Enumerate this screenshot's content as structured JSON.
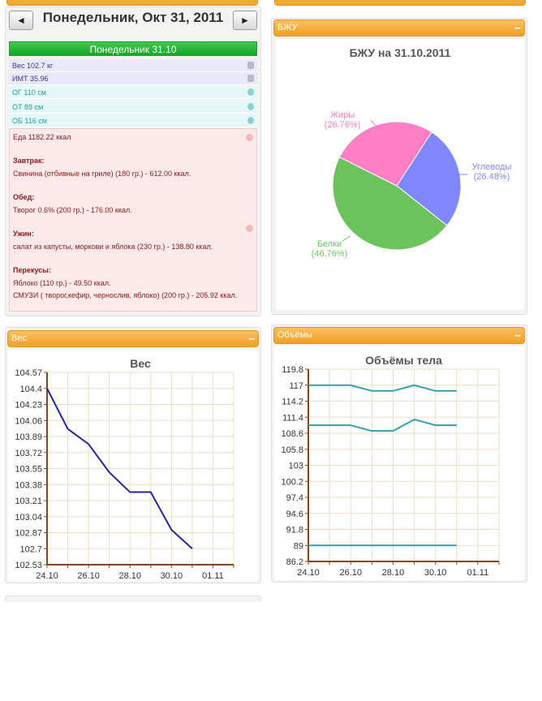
{
  "day": {
    "prev_label": "◄",
    "next_label": "►",
    "title": "Понедельник, Окт 31, 2011",
    "header": "Понедельник 31.10",
    "measurements": [
      {
        "text": "Вес 102.7 кг",
        "bg": "#e9e9f9",
        "color": "#3b3b8c",
        "icon": "#b8b8c8"
      },
      {
        "text": "ИМТ 35.96",
        "bg": "#e9e9f9",
        "color": "#3b3b8c",
        "icon": "#b8b8c8"
      },
      {
        "text": "ОГ 110 см",
        "bg": "#e4f8f8",
        "color": "#2a9a9a",
        "icon": "#8ecfcf"
      },
      {
        "text": "ОТ 89 см",
        "bg": "#e4f8f8",
        "color": "#2a9a9a",
        "icon": "#8ecfcf"
      },
      {
        "text": "ОБ 116 см",
        "bg": "#e4f8f8",
        "color": "#2a9a9a",
        "icon": "#8ecfcf"
      }
    ],
    "food_total": "Еда 1182.22 ккал",
    "meals": [
      {
        "name": "Завтрак:",
        "items": [
          " Свинина (отбивные на гриле) (180 гр.) - 612.00 ккал."
        ]
      },
      {
        "name": "Обед:",
        "items": [
          " Творог 0.6% (200 гр.) - 176.00 ккал."
        ]
      },
      {
        "name": "Ужин:",
        "items": [
          " салат из капусты, моркови и яблока (230 гр.) - 138.80 ккал."
        ]
      },
      {
        "name": "Перекусы:",
        "items": [
          " Яблоко (110 гр.) - 49.50 ккал.",
          " СМУЗИ ( творог,кефир, чернослив, яблоко) (200 гр.) - 205.92 ккал."
        ]
      }
    ]
  },
  "bju_panel": {
    "header": "БЖУ",
    "minimize": "−"
  },
  "weight_panel": {
    "header": "Вес",
    "minimize": "−"
  },
  "volumes_panel": {
    "header": "Объёмы",
    "minimize": "−"
  },
  "chart_data": [
    {
      "type": "pie",
      "title": "БЖУ на 31.10.2011",
      "slices": [
        {
          "name": "Жиры",
          "value": 26.76,
          "label": "(26.76%)",
          "color": "#ff7ec5"
        },
        {
          "name": "Углеводы",
          "value": 26.48,
          "label": "(26.48%)",
          "color": "#7f88ff"
        },
        {
          "name": "Белки",
          "value": 46.76,
          "label": "(46.76%)",
          "color": "#6cc35e"
        }
      ]
    },
    {
      "type": "line",
      "title": "Вес",
      "yticks": [
        "104.57",
        "104.4",
        "104.23",
        "104.06",
        "103.89",
        "103.72",
        "103.55",
        "103.38",
        "103.21",
        "103.04",
        "102.87",
        "102.7",
        "102.53"
      ],
      "ylim": [
        102.53,
        104.57
      ],
      "xticks": [
        "24.10",
        "26.10",
        "28.10",
        "30.10",
        "01.11"
      ],
      "xlim": [
        24,
        33
      ],
      "series": [
        {
          "x": [
            24,
            25,
            26,
            27,
            28,
            29,
            30,
            31
          ],
          "y": [
            104.4,
            103.97,
            103.81,
            103.51,
            103.3,
            103.3,
            102.9,
            102.7
          ],
          "color": "#26269a"
        }
      ]
    },
    {
      "type": "line",
      "title": "Объёмы тела",
      "yticks": [
        "119.8",
        "117",
        "114.2",
        "111.4",
        "108.6",
        "105.8",
        "103",
        "100.2",
        "97.4",
        "94.6",
        "91.8",
        "89",
        "86.2"
      ],
      "ylim": [
        86.2,
        119.8
      ],
      "xticks": [
        "24.10",
        "26.10",
        "28.10",
        "30.10",
        "01.11"
      ],
      "xlim": [
        24,
        33
      ],
      "series": [
        {
          "x": [
            24,
            25,
            26,
            27,
            28,
            29,
            30,
            31
          ],
          "y": [
            117,
            117,
            117,
            116,
            116,
            117,
            116,
            116
          ],
          "color": "#33a1a8"
        },
        {
          "x": [
            24,
            25,
            26,
            27,
            28,
            29,
            30,
            31
          ],
          "y": [
            110,
            110,
            110,
            109,
            109,
            111,
            110,
            110
          ],
          "color": "#33a1a8"
        },
        {
          "x": [
            24,
            25,
            26,
            27,
            28,
            29,
            30,
            31
          ],
          "y": [
            89,
            89,
            89,
            89,
            89,
            89,
            89,
            89
          ],
          "color": "#33a1a8"
        }
      ]
    }
  ]
}
